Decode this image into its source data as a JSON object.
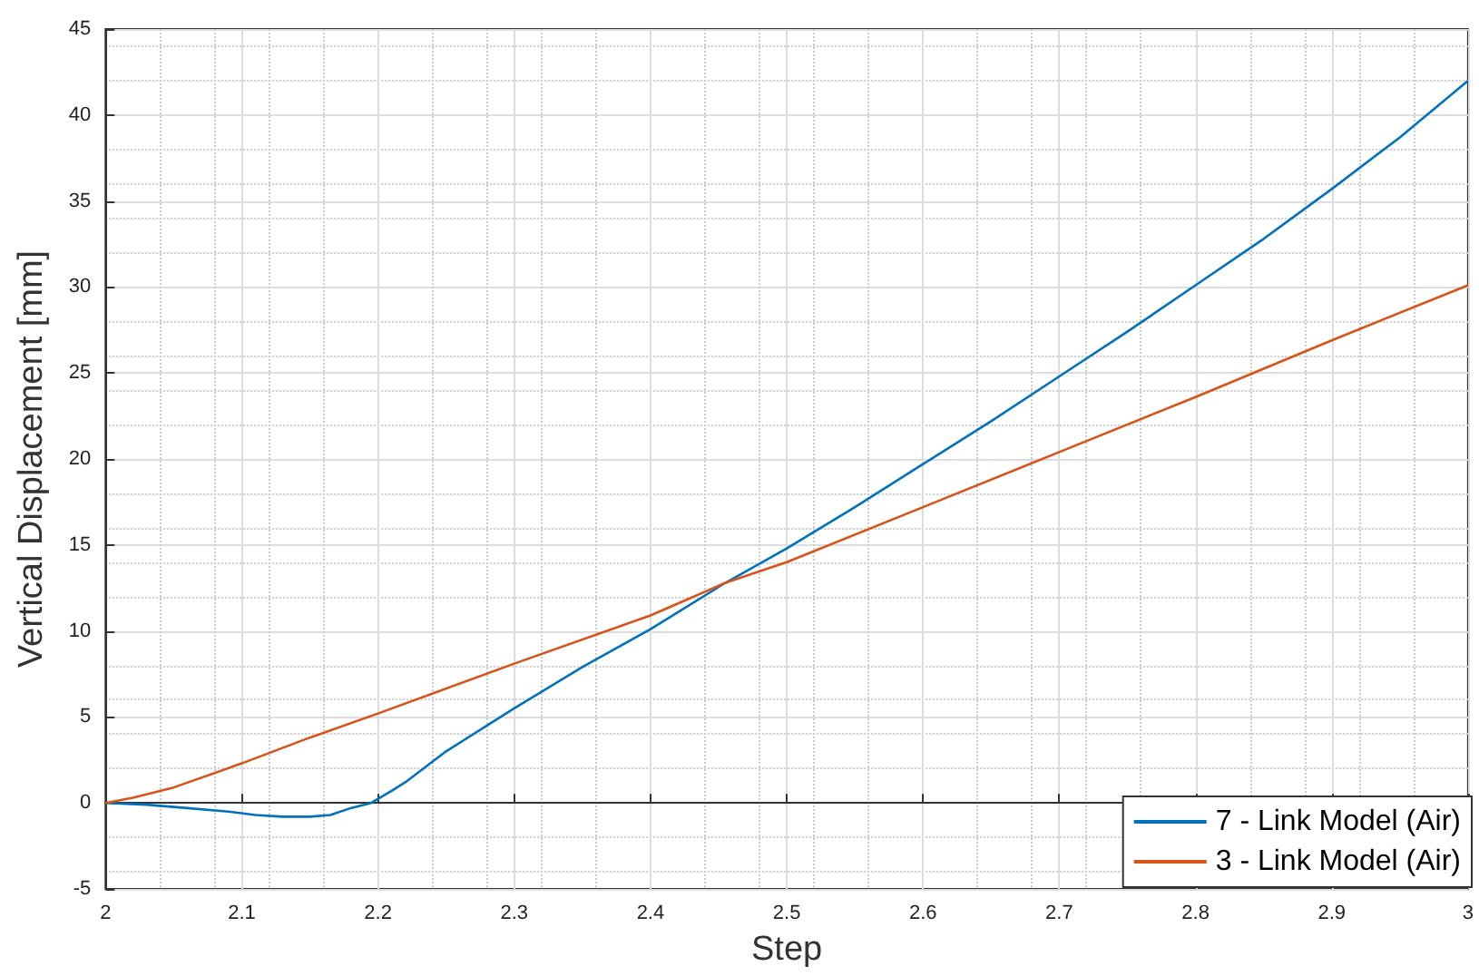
{
  "chart_data": {
    "type": "line",
    "xlabel": "Step",
    "ylabel": "Vertical Displacement [mm]",
    "xlim": [
      2,
      3
    ],
    "xticks": [
      2,
      2.1,
      2.2,
      2.3,
      2.4,
      2.5,
      2.6,
      2.7,
      2.8,
      2.9,
      3
    ],
    "ylim": [
      -5,
      45
    ],
    "yticks": [
      -5,
      0,
      5,
      10,
      15,
      20,
      25,
      30,
      35,
      40,
      45
    ],
    "grid": true,
    "legend": "bottom right",
    "marker": "none",
    "line_style": "solid",
    "series": [
      {
        "name": "7 - Link Model (Air)",
        "color": "#0072bd",
        "x": [
          2,
          2.03,
          2.06,
          2.09,
          2.11,
          2.13,
          2.15,
          2.165,
          2.18,
          2.195,
          2.21,
          2.22,
          2.25,
          2.3,
          2.35,
          2.4,
          2.455,
          2.5,
          2.55,
          2.6,
          2.65,
          2.7,
          2.75,
          2.8,
          2.85,
          2.9,
          2.95,
          3
        ],
        "values": [
          0,
          -0.1,
          -0.3,
          -0.5,
          -0.7,
          -0.8,
          -0.8,
          -0.7,
          -0.3,
          0,
          0.7,
          1.2,
          3.0,
          5.5,
          7.9,
          10.1,
          12.8,
          14.8,
          17.2,
          19.7,
          22.2,
          24.8,
          27.4,
          30.1,
          32.8,
          35.7,
          38.7,
          42
        ]
      },
      {
        "name": "3 - Link Model (Air)",
        "color": "#d95319",
        "x": [
          2,
          2.02,
          2.05,
          2.1,
          2.15,
          2.2,
          2.3,
          2.4,
          2.455,
          2.5,
          2.6,
          2.7,
          2.8,
          2.9,
          3
        ],
        "values": [
          0,
          0.3,
          0.9,
          2.3,
          3.8,
          5.2,
          8.1,
          10.9,
          12.8,
          14.0,
          17.2,
          20.4,
          23.6,
          26.9,
          30.1
        ]
      }
    ]
  }
}
